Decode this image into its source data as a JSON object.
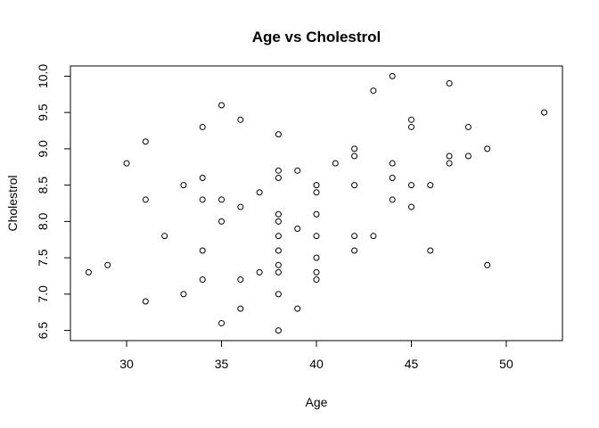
{
  "chart_data": {
    "type": "scatter",
    "title": "Age vs Cholestrol",
    "xlabel": "Age",
    "ylabel": "Cholestrol",
    "xlim": [
      27.04,
      52.96
    ],
    "ylim": [
      6.36,
      10.14
    ],
    "x_ticks": [
      30,
      35,
      40,
      45,
      50
    ],
    "y_ticks": [
      6.5,
      7.0,
      7.5,
      8.0,
      8.5,
      9.0,
      9.5,
      10.0
    ],
    "x_tick_labels": [
      "30",
      "35",
      "40",
      "45",
      "50"
    ],
    "y_tick_labels": [
      "6.5",
      "7.0",
      "7.5",
      "8.0",
      "8.5",
      "9.0",
      "9.5",
      "10.0"
    ],
    "grid": false,
    "marker": "open-circle",
    "points": [
      [
        28,
        7.3
      ],
      [
        29,
        7.4
      ],
      [
        30,
        8.8
      ],
      [
        31,
        9.1
      ],
      [
        31,
        8.3
      ],
      [
        31,
        6.9
      ],
      [
        32,
        7.8
      ],
      [
        33,
        8.5
      ],
      [
        33,
        7.0
      ],
      [
        34,
        9.3
      ],
      [
        34,
        8.6
      ],
      [
        34,
        8.3
      ],
      [
        34,
        7.6
      ],
      [
        34,
        7.2
      ],
      [
        35,
        9.6
      ],
      [
        35,
        8.3
      ],
      [
        35,
        8.0
      ],
      [
        35,
        6.6
      ],
      [
        36,
        9.4
      ],
      [
        36,
        8.2
      ],
      [
        36,
        7.2
      ],
      [
        36,
        6.8
      ],
      [
        37,
        8.4
      ],
      [
        37,
        7.3
      ],
      [
        38,
        9.2
      ],
      [
        38,
        8.7
      ],
      [
        38,
        8.6
      ],
      [
        38,
        8.1
      ],
      [
        38,
        8.0
      ],
      [
        38,
        7.8
      ],
      [
        38,
        7.6
      ],
      [
        38,
        7.4
      ],
      [
        38,
        7.3
      ],
      [
        38,
        7.0
      ],
      [
        38,
        6.5
      ],
      [
        39,
        8.7
      ],
      [
        39,
        7.9
      ],
      [
        39,
        6.8
      ],
      [
        40,
        8.5
      ],
      [
        40,
        8.4
      ],
      [
        40,
        8.1
      ],
      [
        40,
        7.8
      ],
      [
        40,
        7.5
      ],
      [
        40,
        7.3
      ],
      [
        40,
        7.2
      ],
      [
        41,
        8.8
      ],
      [
        42,
        9.0
      ],
      [
        42,
        8.9
      ],
      [
        42,
        8.5
      ],
      [
        42,
        7.8
      ],
      [
        42,
        7.6
      ],
      [
        43,
        9.8
      ],
      [
        43,
        7.8
      ],
      [
        44,
        10.0
      ],
      [
        44,
        8.8
      ],
      [
        44,
        8.6
      ],
      [
        44,
        8.3
      ],
      [
        45,
        9.4
      ],
      [
        45,
        9.3
      ],
      [
        45,
        8.5
      ],
      [
        45,
        8.2
      ],
      [
        46,
        8.5
      ],
      [
        46,
        7.6
      ],
      [
        47,
        9.9
      ],
      [
        47,
        8.9
      ],
      [
        47,
        8.8
      ],
      [
        48,
        9.3
      ],
      [
        48,
        8.9
      ],
      [
        49,
        9.0
      ],
      [
        49,
        7.4
      ],
      [
        52,
        9.5
      ]
    ]
  }
}
